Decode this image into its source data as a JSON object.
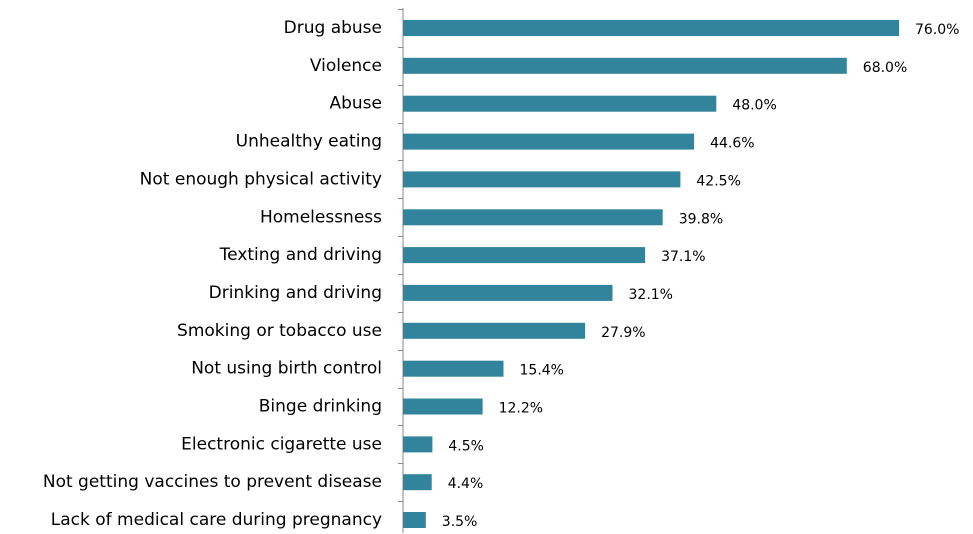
{
  "chart_data": {
    "type": "bar",
    "orientation": "horizontal",
    "categories": [
      "Drug abuse",
      "Violence",
      "Abuse",
      "Unhealthy eating",
      "Not enough physical activity",
      "Homelessness",
      "Texting and driving",
      "Drinking and driving",
      "Smoking or tobacco use ",
      "Not using birth control",
      "Binge drinking ",
      "Electronic cigarette use",
      "Not getting vaccines to prevent disease",
      "Lack of medical care during pregnancy"
    ],
    "values": [
      76.0,
      68.0,
      48.0,
      44.6,
      42.5,
      39.8,
      37.1,
      32.1,
      27.9,
      15.4,
      12.2,
      4.5,
      4.4,
      3.5
    ],
    "value_labels": [
      "76.0%",
      "68.0%",
      "48.0%",
      "44.6%",
      "42.5%",
      "39.8%",
      "37.1%",
      "32.1%",
      "27.9%",
      "15.4%",
      "12.2%",
      "4.5%",
      "4.4%",
      "3.5%"
    ],
    "unit": "%",
    "title": "",
    "xlabel": "",
    "ylabel": "",
    "xlim": [
      0,
      76
    ],
    "grid": false,
    "legend": "none",
    "bar_color": "#31849b"
  }
}
